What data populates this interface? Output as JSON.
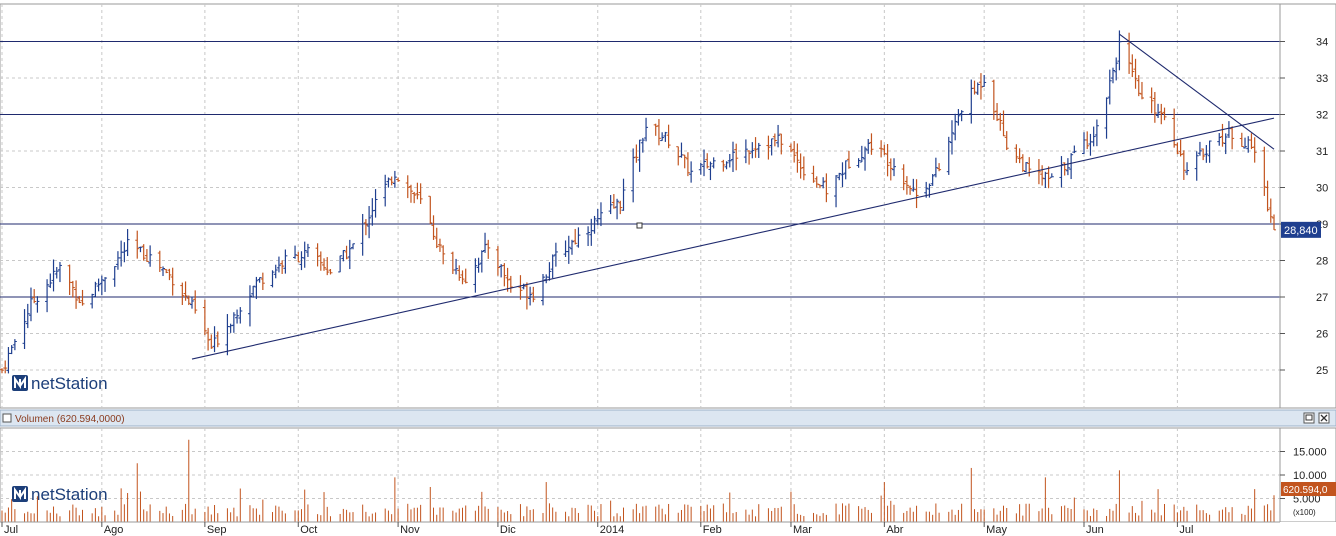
{
  "brand": {
    "logo_text": "netStation"
  },
  "panel_controls": {
    "restore_icon": "restore-icon",
    "close_icon": "close-icon"
  },
  "colors": {
    "up": "#1f3f8f",
    "down": "#c2541e",
    "volume": "#c2541e",
    "grid": "#c8c8c8",
    "hline": "#1f2a6e",
    "trend": "#1f2a6e",
    "label_bg": "#1f3f8f",
    "vol_label_bg": "#c2541e"
  },
  "chart_data": [
    {
      "type": "ohlc",
      "ylim": [
        24.5,
        35.3
      ],
      "yticks": [
        "25",
        "26",
        "27",
        "28",
        "29",
        "30",
        "31",
        "32",
        "33",
        "34"
      ],
      "grid": true,
      "last_price_label": "28,840",
      "last_price": 28.84,
      "horizontal_lines": [
        34.0,
        32.0,
        29.0,
        27.0
      ],
      "trendlines": [
        {
          "from": [
            "2013-08-29",
            25.3
          ],
          "to": [
            "2014-07-31",
            31.9
          ]
        },
        {
          "from": [
            "2014-06-13",
            34.2
          ],
          "to": [
            "2014-07-31",
            31.05
          ]
        }
      ],
      "x_range": [
        "2013-07-01",
        "2014-07-31"
      ],
      "x_tick_labels": [
        {
          "label": "Jul",
          "date": "2013-07-01"
        },
        {
          "label": "Ago",
          "date": "2013-08-01"
        },
        {
          "label": "Sep",
          "date": "2013-09-02"
        },
        {
          "label": "Oct",
          "date": "2013-10-01"
        },
        {
          "label": "Nov",
          "date": "2013-11-01"
        },
        {
          "label": "Dic",
          "date": "2013-12-02"
        },
        {
          "label": "2014",
          "date": "2014-01-02"
        },
        {
          "label": "Feb",
          "date": "2014-02-03"
        },
        {
          "label": "Mar",
          "date": "2014-03-03"
        },
        {
          "label": "Abr",
          "date": "2014-04-01"
        },
        {
          "label": "May",
          "date": "2014-05-02"
        },
        {
          "label": "Jun",
          "date": "2014-06-02"
        },
        {
          "label": "Jul",
          "date": "2014-07-01"
        }
      ],
      "close_path": [
        [
          "2013-07-01",
          25.0
        ],
        [
          "2013-07-10",
          26.8
        ],
        [
          "2013-07-19",
          27.8
        ],
        [
          "2013-07-26",
          26.8
        ],
        [
          "2013-08-02",
          27.6
        ],
        [
          "2013-08-09",
          28.4
        ],
        [
          "2013-08-16",
          28.1
        ],
        [
          "2013-08-23",
          27.5
        ],
        [
          "2013-08-30",
          26.6
        ],
        [
          "2013-09-04",
          25.6
        ],
        [
          "2013-09-11",
          26.5
        ],
        [
          "2013-09-18",
          27.4
        ],
        [
          "2013-09-27",
          28.0
        ],
        [
          "2013-10-04",
          28.2
        ],
        [
          "2013-10-11",
          27.7
        ],
        [
          "2013-10-18",
          28.4
        ],
        [
          "2013-10-25",
          29.6
        ],
        [
          "2013-10-31",
          30.4
        ],
        [
          "2013-11-08",
          29.6
        ],
        [
          "2013-11-15",
          28.1
        ],
        [
          "2013-11-22",
          27.5
        ],
        [
          "2013-11-29",
          28.4
        ],
        [
          "2013-12-06",
          27.3
        ],
        [
          "2013-12-13",
          27.1
        ],
        [
          "2013-12-20",
          28.1
        ],
        [
          "2013-12-30",
          28.9
        ],
        [
          "2014-01-09",
          29.6
        ],
        [
          "2014-01-17",
          31.7
        ],
        [
          "2014-01-24",
          31.3
        ],
        [
          "2014-01-31",
          30.4
        ],
        [
          "2014-02-07",
          30.7
        ],
        [
          "2014-02-14",
          30.9
        ],
        [
          "2014-02-21",
          31.2
        ],
        [
          "2014-02-28",
          31.3
        ],
        [
          "2014-03-07",
          30.5
        ],
        [
          "2014-03-14",
          29.9
        ],
        [
          "2014-03-21",
          30.7
        ],
        [
          "2014-03-28",
          31.2
        ],
        [
          "2014-04-04",
          30.6
        ],
        [
          "2014-04-11",
          29.8
        ],
        [
          "2014-04-18",
          30.5
        ],
        [
          "2014-04-25",
          32.2
        ],
        [
          "2014-05-02",
          33.0
        ],
        [
          "2014-05-09",
          31.2
        ],
        [
          "2014-05-16",
          30.4
        ],
        [
          "2014-05-23",
          30.2
        ],
        [
          "2014-05-30",
          30.9
        ],
        [
          "2014-06-06",
          31.6
        ],
        [
          "2014-06-13",
          33.9
        ],
        [
          "2014-06-20",
          32.4
        ],
        [
          "2014-06-27",
          32.0
        ],
        [
          "2014-07-04",
          30.4
        ],
        [
          "2014-07-11",
          31.2
        ],
        [
          "2014-07-18",
          31.5
        ],
        [
          "2014-07-25",
          31.0
        ],
        [
          "2014-07-31",
          28.84
        ]
      ]
    },
    {
      "type": "bar",
      "title": "Volumen (620.594,0000)",
      "ylim": [
        0,
        20000
      ],
      "yticks": [
        "5.000",
        "10.000",
        "15.000"
      ],
      "scale_note": "(x100)",
      "last_value_label": "620.594,0",
      "spikes": [
        [
          "2013-08-12",
          12500
        ],
        [
          "2013-08-28",
          17500
        ],
        [
          "2013-10-31",
          9500
        ],
        [
          "2013-11-11",
          8500
        ],
        [
          "2013-12-17",
          8500
        ],
        [
          "2014-04-01",
          8500
        ],
        [
          "2014-04-28",
          11500
        ],
        [
          "2014-05-21",
          9500
        ],
        [
          "2014-06-13",
          11000
        ],
        [
          "2014-07-25",
          7000
        ]
      ]
    }
  ]
}
